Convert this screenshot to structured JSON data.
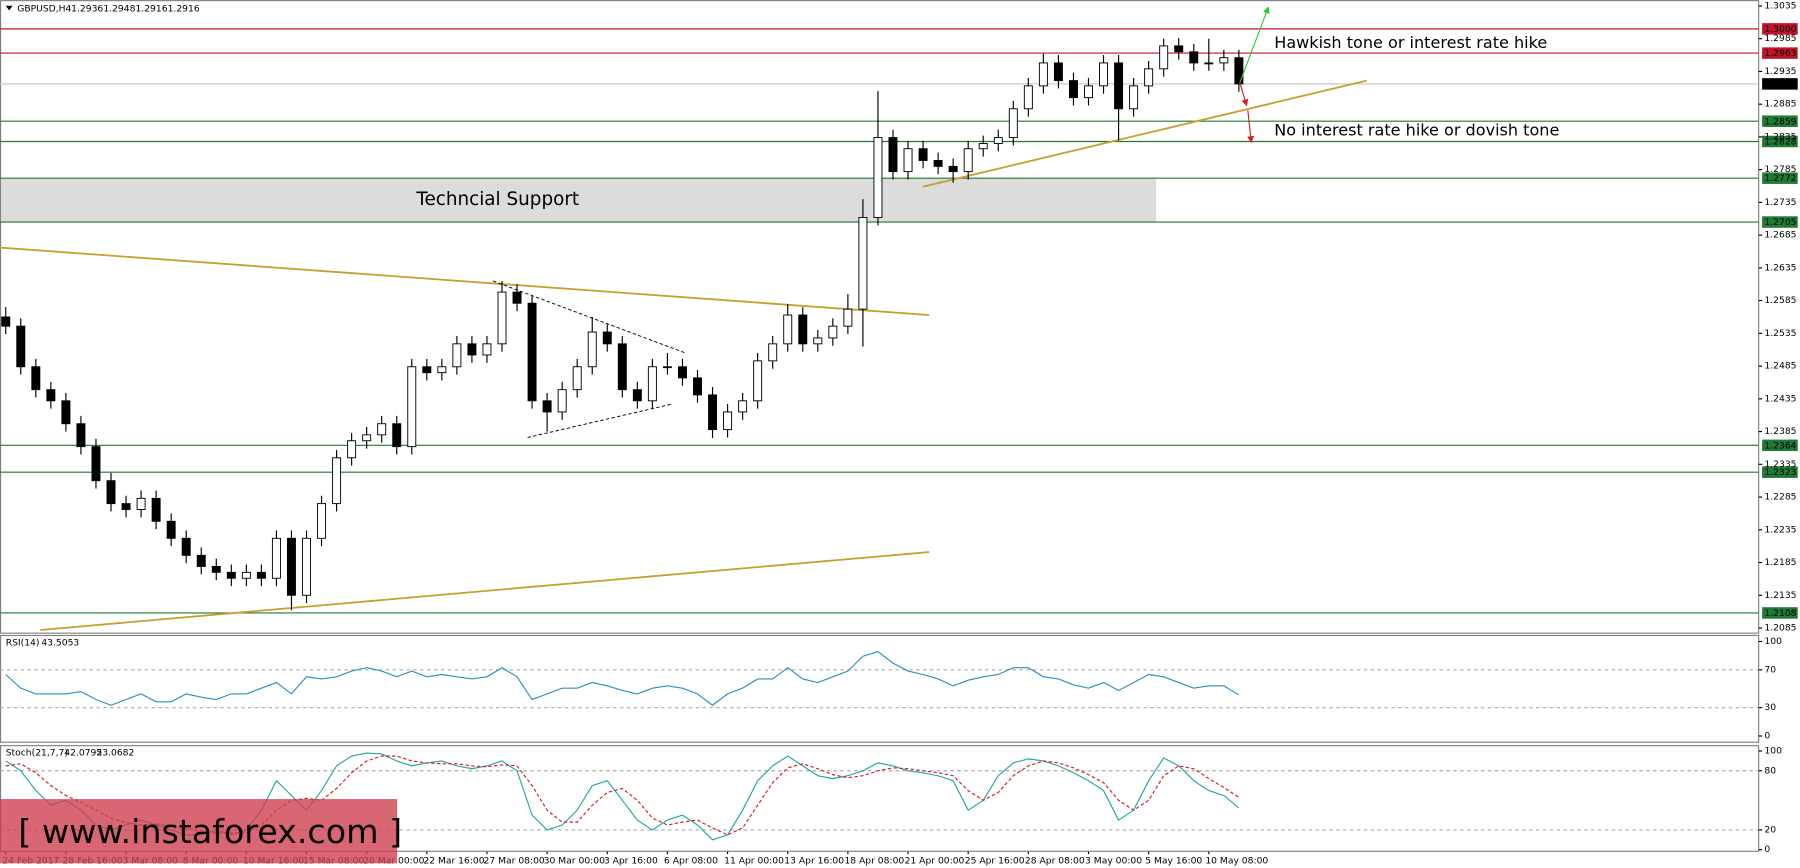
{
  "header": {
    "symbol": "GBPUSD,H4",
    "ohlc": [
      1.2936,
      1.2948,
      1.2916,
      1.2916
    ]
  },
  "watermark": "[ www.instaforex.com ]",
  "chart_data": [
    {
      "type": "candlestick",
      "up_color": "#ffffff",
      "down_color": "#000000",
      "ohlc": [
        [
          1.256,
          1.2575,
          1.2534,
          1.2546
        ],
        [
          1.2546,
          1.2558,
          1.2472,
          1.2484
        ],
        [
          1.2484,
          1.2496,
          1.2437,
          1.2449
        ],
        [
          1.2449,
          1.2461,
          1.242,
          1.2432
        ],
        [
          1.2432,
          1.2444,
          1.2385,
          1.2397
        ],
        [
          1.2397,
          1.2409,
          1.235,
          1.2362
        ],
        [
          1.2362,
          1.2374,
          1.2298,
          1.231
        ],
        [
          1.231,
          1.2322,
          1.2263,
          1.2275
        ],
        [
          1.2275,
          1.2287,
          1.2254,
          1.2266
        ],
        [
          1.2266,
          1.2295,
          1.2254,
          1.2283
        ],
        [
          1.2283,
          1.2295,
          1.2236,
          1.2248
        ],
        [
          1.2248,
          1.226,
          1.221,
          1.2222
        ],
        [
          1.2222,
          1.2234,
          1.2184,
          1.2196
        ],
        [
          1.2196,
          1.2208,
          1.2167,
          1.2179
        ],
        [
          1.2179,
          1.2191,
          1.2158,
          1.217
        ],
        [
          1.217,
          1.2182,
          1.2149,
          1.2161
        ],
        [
          1.2161,
          1.2182,
          1.2149,
          1.217
        ],
        [
          1.217,
          1.2182,
          1.2149,
          1.2161
        ],
        [
          1.2161,
          1.2234,
          1.2149,
          1.2222
        ],
        [
          1.2222,
          1.2234,
          1.2112,
          1.2135
        ],
        [
          1.2135,
          1.2234,
          1.2123,
          1.2222
        ],
        [
          1.2222,
          1.2287,
          1.221,
          1.2275
        ],
        [
          1.2275,
          1.2357,
          1.2263,
          1.2345
        ],
        [
          1.2345,
          1.2383,
          1.2333,
          1.2371
        ],
        [
          1.2371,
          1.2392,
          1.2359,
          1.238
        ],
        [
          1.238,
          1.2409,
          1.2368,
          1.2397
        ],
        [
          1.2397,
          1.2409,
          1.235,
          1.2362
        ],
        [
          1.2362,
          1.2496,
          1.235,
          1.2484
        ],
        [
          1.2484,
          1.2496,
          1.2463,
          1.2475
        ],
        [
          1.2475,
          1.2496,
          1.2463,
          1.2484
        ],
        [
          1.2484,
          1.2531,
          1.2472,
          1.2519
        ],
        [
          1.2519,
          1.2531,
          1.249,
          1.2502
        ],
        [
          1.2502,
          1.2531,
          1.249,
          1.2519
        ],
        [
          1.2519,
          1.2615,
          1.2507,
          1.2598
        ],
        [
          1.2598,
          1.261,
          1.2569,
          1.2581
        ],
        [
          1.2581,
          1.2593,
          1.242,
          1.2432
        ],
        [
          1.2432,
          1.2444,
          1.2385,
          1.2415
        ],
        [
          1.2415,
          1.2461,
          1.2403,
          1.2449
        ],
        [
          1.2449,
          1.2496,
          1.2437,
          1.2484
        ],
        [
          1.2484,
          1.256,
          1.2472,
          1.2537
        ],
        [
          1.2537,
          1.2549,
          1.2507,
          1.2519
        ],
        [
          1.2519,
          1.2531,
          1.2437,
          1.2449
        ],
        [
          1.2449,
          1.2461,
          1.242,
          1.2432
        ],
        [
          1.2432,
          1.2496,
          1.242,
          1.2484
        ],
        [
          1.2484,
          1.2505,
          1.2472,
          1.2484
        ],
        [
          1.2484,
          1.2496,
          1.2455,
          1.2467
        ],
        [
          1.2467,
          1.2479,
          1.2429,
          1.2441
        ],
        [
          1.2441,
          1.2453,
          1.2375,
          1.2388
        ],
        [
          1.2388,
          1.2427,
          1.2376,
          1.2415
        ],
        [
          1.2415,
          1.2444,
          1.2403,
          1.2432
        ],
        [
          1.2432,
          1.2505,
          1.242,
          1.2493
        ],
        [
          1.2493,
          1.2531,
          1.2481,
          1.2519
        ],
        [
          1.2519,
          1.258,
          1.2507,
          1.2563
        ],
        [
          1.2563,
          1.2575,
          1.2507,
          1.2519
        ],
        [
          1.2519,
          1.254,
          1.2507,
          1.2528
        ],
        [
          1.2528,
          1.2558,
          1.2516,
          1.2546
        ],
        [
          1.2546,
          1.2595,
          1.2534,
          1.2572
        ],
        [
          1.2572,
          1.274,
          1.2515,
          1.2712
        ],
        [
          1.2712,
          1.2905,
          1.27,
          1.2834
        ],
        [
          1.2834,
          1.2846,
          1.277,
          1.2782
        ],
        [
          1.2782,
          1.2829,
          1.277,
          1.2817
        ],
        [
          1.2817,
          1.2829,
          1.2787,
          1.2799
        ],
        [
          1.2799,
          1.2811,
          1.2778,
          1.279
        ],
        [
          1.279,
          1.2802,
          1.2765,
          1.2782
        ],
        [
          1.2782,
          1.2829,
          1.277,
          1.2817
        ],
        [
          1.2817,
          1.2837,
          1.2805,
          1.2825
        ],
        [
          1.2825,
          1.2846,
          1.2813,
          1.2834
        ],
        [
          1.2834,
          1.289,
          1.2822,
          1.2878
        ],
        [
          1.2878,
          1.2925,
          1.2866,
          1.2913
        ],
        [
          1.2913,
          1.2962,
          1.2901,
          1.2948
        ],
        [
          1.2948,
          1.296,
          1.2909,
          1.2921
        ],
        [
          1.2921,
          1.2933,
          1.2883,
          1.2895
        ],
        [
          1.2895,
          1.2925,
          1.2883,
          1.2913
        ],
        [
          1.2913,
          1.296,
          1.2901,
          1.2948
        ],
        [
          1.2948,
          1.296,
          1.283,
          1.2878
        ],
        [
          1.2878,
          1.2925,
          1.2866,
          1.2913
        ],
        [
          1.2913,
          1.2951,
          1.2901,
          1.2939
        ],
        [
          1.2939,
          1.2985,
          1.2927,
          1.2974
        ],
        [
          1.2974,
          1.2986,
          1.2953,
          1.2965
        ],
        [
          1.2965,
          1.2977,
          1.2936,
          1.2948
        ],
        [
          1.2948,
          1.2985,
          1.2936,
          1.2948
        ],
        [
          1.2948,
          1.2968,
          1.2936,
          1.2956
        ],
        [
          1.2956,
          1.2968,
          1.2904,
          1.2916
        ]
      ],
      "ylim": [
        1.2078,
        1.3044
      ],
      "yticks": [
        1.3035,
        1.2985,
        1.2935,
        1.2885,
        1.2835,
        1.2785,
        1.2735,
        1.2685,
        1.2635,
        1.2585,
        1.2535,
        1.2485,
        1.2435,
        1.2385,
        1.2335,
        1.2285,
        1.2235,
        1.2185,
        1.2135,
        1.2085
      ],
      "xticks": [
        {
          "value": 0,
          "label": "24 Feb 2017"
        },
        {
          "value": 4,
          "label": "28 Feb 16:00"
        },
        {
          "value": 8,
          "label": "3 Mar 08:00"
        },
        {
          "value": 12,
          "label": "8 Mar 00:00"
        },
        {
          "value": 16,
          "label": "10 Mar 16:00"
        },
        {
          "value": 20,
          "label": "15 Mar 08:00"
        },
        {
          "value": 24,
          "label": "20 Mar 00:00"
        },
        {
          "value": 28,
          "label": "22 Mar 16:00"
        },
        {
          "value": 32,
          "label": "27 Mar 08:00"
        },
        {
          "value": 36,
          "label": "30 Mar 00:00"
        },
        {
          "value": 40,
          "label": "3 Apr 16:00"
        },
        {
          "value": 44,
          "label": "6 Apr 08:00"
        },
        {
          "value": 48,
          "label": "11 Apr 00:00"
        },
        {
          "value": 52,
          "label": "13 Apr 16:00"
        },
        {
          "value": 56,
          "label": "18 Apr 08:00"
        },
        {
          "value": 60,
          "label": "21 Apr 00:00"
        },
        {
          "value": 64,
          "label": "25 Apr 16:00"
        },
        {
          "value": 68,
          "label": "28 Apr 08:00"
        },
        {
          "value": 72,
          "label": "3 May 00:00"
        },
        {
          "value": 76,
          "label": "5 May 16:00"
        },
        {
          "value": 80,
          "label": "10 May 08:00"
        }
      ],
      "levels": [
        {
          "value": 1.3,
          "label": "1.3000",
          "color": "#c0142a"
        },
        {
          "value": 1.2963,
          "label": "1.2963",
          "color": "#c0142a"
        },
        {
          "value": 1.2916,
          "label": "1.2916",
          "color": "#000000"
        },
        {
          "value": 1.2859,
          "label": "1.2859",
          "color": "#1e7a34"
        },
        {
          "value": 1.2828,
          "label": "1.2828",
          "color": "#1e7a34"
        },
        {
          "value": 1.2772,
          "label": "1.2772",
          "color": "#1e7a34"
        },
        {
          "value": 1.2705,
          "label": "1.2705",
          "color": "#1e7a34"
        },
        {
          "value": 1.2364,
          "label": "1.2364",
          "color": "#1e7a34"
        },
        {
          "value": 1.2323,
          "label": "1.2323",
          "color": "#1e7a34"
        },
        {
          "value": 1.2108,
          "label": "1.2108",
          "color": "#1e7a34"
        }
      ],
      "zone": {
        "label": "Techncial Support",
        "from": 1.2705,
        "to": 1.2772,
        "x_end": 76.5
      },
      "lines": [
        {
          "points": [
            [
              -0.4,
              1.2666
            ],
            [
              61.4,
              1.2563
            ]
          ],
          "color": "#c8a030",
          "dash": false
        },
        {
          "points": [
            [
              2.3,
              1.2082
            ],
            [
              61.4,
              1.2201
            ]
          ],
          "color": "#c8a030",
          "dash": false
        },
        {
          "points": [
            [
              61,
              1.2759
            ],
            [
              90.5,
              1.2921
            ]
          ],
          "color": "#c8a030",
          "dash": false
        },
        {
          "points": [
            [
              32.4,
              1.2615
            ],
            [
              45.2,
              1.2505
            ]
          ],
          "color": "#000000",
          "dash": true
        },
        {
          "points": [
            [
              34.7,
              1.2376
            ],
            [
              44.3,
              1.2427
            ]
          ],
          "color": "#000000",
          "dash": true
        }
      ],
      "annotations": [
        {
          "text": "Hawkish tone or interest rate hike",
          "color": "#2ec82e"
        },
        {
          "text": "No interest rate hike or dovish tone",
          "color": "#d42020"
        }
      ]
    },
    {
      "type": "line",
      "name": "RSI(14)",
      "last": 43.5053,
      "color": "#2f8fc0",
      "values": [
        65.1,
        50.6,
        44.6,
        44.6,
        44.6,
        47.0,
        38.6,
        32.5,
        38.6,
        44.6,
        36.2,
        36.2,
        44.6,
        41.0,
        38.6,
        44.6,
        44.6,
        50.6,
        56.6,
        44.6,
        62.7,
        60.3,
        62.7,
        68.7,
        72.3,
        68.7,
        62.7,
        68.7,
        62.7,
        65.1,
        62.7,
        60.3,
        62.7,
        72.3,
        62.7,
        38.6,
        44.6,
        50.6,
        50.6,
        56.6,
        53.0,
        48.2,
        44.6,
        50.6,
        53.0,
        50.6,
        44.6,
        32.5,
        44.6,
        50.6,
        60.3,
        60.3,
        72.3,
        60.3,
        56.6,
        62.7,
        68.7,
        84.4,
        89.2,
        77.1,
        68.7,
        65.1,
        60.3,
        53.0,
        59.0,
        62.7,
        65.1,
        72.3,
        72.3,
        62.7,
        60.3,
        54.2,
        50.6,
        56.6,
        48.2,
        56.6,
        65.1,
        62.7,
        56.6,
        50.6,
        53.0,
        53.0,
        43.5
      ],
      "ylim": [
        -6,
        107
      ],
      "yticks": [
        0,
        30,
        70,
        100
      ],
      "dashed_levels": [
        30,
        70
      ]
    },
    {
      "type": "line",
      "name": "Stoch(21,7,7)",
      "last": [
        42.0792,
        53.0682
      ],
      "series": [
        {
          "color": "#20a8a0",
          "dash": false,
          "values": [
            90,
            80,
            60,
            45,
            50,
            40,
            25,
            20,
            25,
            30,
            25,
            20,
            15,
            15,
            20,
            15,
            20,
            40,
            70,
            55,
            40,
            60,
            85,
            95,
            98,
            97,
            90,
            85,
            88,
            90,
            85,
            82,
            85,
            90,
            80,
            35,
            20,
            25,
            40,
            65,
            70,
            50,
            30,
            20,
            30,
            35,
            25,
            10,
            15,
            40,
            70,
            85,
            95,
            85,
            75,
            72,
            75,
            80,
            88,
            85,
            80,
            78,
            75,
            70,
            40,
            50,
            75,
            88,
            92,
            90,
            85,
            78,
            70,
            60,
            30,
            40,
            70,
            93,
            85,
            70,
            60,
            55,
            42.1
          ]
        },
        {
          "color": "#d02020",
          "dash": true,
          "values": [
            85,
            87,
            78,
            65,
            55,
            48,
            40,
            32,
            27,
            25,
            26,
            24,
            22,
            18,
            17,
            17,
            17,
            25,
            40,
            50,
            52,
            50,
            62,
            78,
            90,
            95,
            95,
            90,
            88,
            87,
            87,
            85,
            84,
            86,
            85,
            65,
            40,
            28,
            28,
            45,
            58,
            62,
            50,
            32,
            25,
            28,
            30,
            22,
            15,
            22,
            45,
            68,
            83,
            87,
            82,
            76,
            73,
            75,
            80,
            83,
            82,
            80,
            78,
            75,
            60,
            50,
            58,
            75,
            85,
            90,
            88,
            83,
            76,
            68,
            50,
            40,
            50,
            75,
            85,
            82,
            72,
            63,
            53.1
          ]
        }
      ],
      "ylim": [
        -1,
        106
      ],
      "yticks": [
        0,
        20,
        80,
        100
      ],
      "dashed_levels": [
        20,
        80
      ]
    }
  ]
}
